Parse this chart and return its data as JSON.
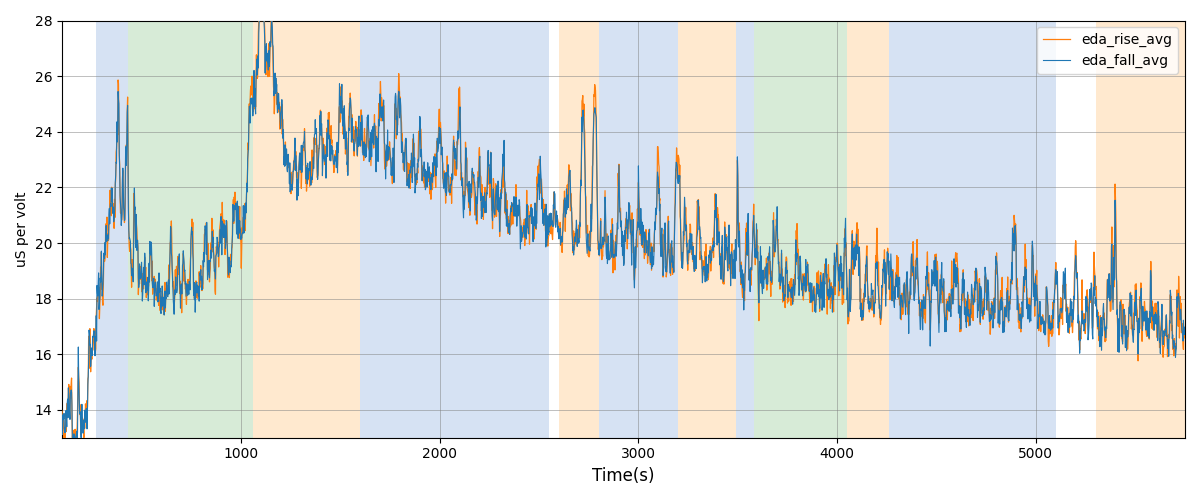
{
  "xlabel": "Time(s)",
  "ylabel": "uS per volt",
  "ylim": [
    13,
    28
  ],
  "xlim": [
    100,
    5750
  ],
  "fall_color": "#1f77b4",
  "rise_color": "#ff7f0e",
  "fall_label": "eda_fall_avg",
  "rise_label": "eda_rise_avg",
  "background_bands": [
    {
      "xmin": 270,
      "xmax": 430,
      "color": "#aec6e8",
      "alpha": 0.5
    },
    {
      "xmin": 430,
      "xmax": 1060,
      "color": "#b0d8b0",
      "alpha": 0.5
    },
    {
      "xmin": 1060,
      "xmax": 1600,
      "color": "#ffd5a0",
      "alpha": 0.5
    },
    {
      "xmin": 1600,
      "xmax": 2550,
      "color": "#aec6e8",
      "alpha": 0.5
    },
    {
      "xmin": 2600,
      "xmax": 2800,
      "color": "#ffd5a0",
      "alpha": 0.5
    },
    {
      "xmin": 2800,
      "xmax": 3200,
      "color": "#aec6e8",
      "alpha": 0.5
    },
    {
      "xmin": 3200,
      "xmax": 3490,
      "color": "#ffd5a0",
      "alpha": 0.5
    },
    {
      "xmin": 3490,
      "xmax": 3580,
      "color": "#aec6e8",
      "alpha": 0.5
    },
    {
      "xmin": 3580,
      "xmax": 4050,
      "color": "#b0d8b0",
      "alpha": 0.5
    },
    {
      "xmin": 4050,
      "xmax": 4260,
      "color": "#ffd5a0",
      "alpha": 0.5
    },
    {
      "xmin": 4260,
      "xmax": 5100,
      "color": "#aec6e8",
      "alpha": 0.5
    },
    {
      "xmin": 5300,
      "xmax": 5750,
      "color": "#ffd5a0",
      "alpha": 0.5
    }
  ],
  "seed_fall": 17,
  "seed_rise": 23,
  "grid": true,
  "legend_loc": "upper right"
}
